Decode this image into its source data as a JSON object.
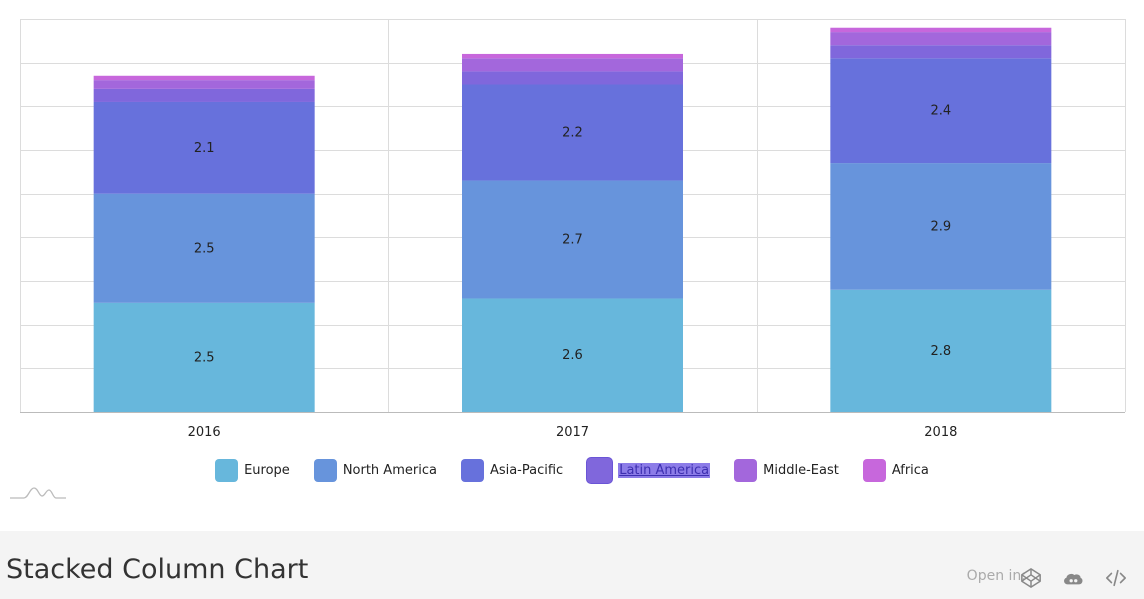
{
  "chart_data": {
    "type": "bar",
    "stacked": true,
    "categories": [
      "2016",
      "2017",
      "2018"
    ],
    "series": [
      {
        "name": "Europe",
        "values": [
          2.5,
          2.6,
          2.8
        ],
        "color": "#67b7dc",
        "labels": [
          "2.5",
          "2.6",
          "2.8"
        ]
      },
      {
        "name": "North America",
        "values": [
          2.5,
          2.7,
          2.9
        ],
        "color": "#6794dc",
        "labels": [
          "2.5",
          "2.7",
          "2.9"
        ]
      },
      {
        "name": "Asia-Pacific",
        "values": [
          2.1,
          2.2,
          2.4
        ],
        "color": "#6771dc",
        "labels": [
          "2.1",
          "2.2",
          "2.4"
        ]
      },
      {
        "name": "Latin America",
        "values": [
          0.3,
          0.3,
          0.3
        ],
        "color": "#8067dc",
        "labels": [
          "",
          "",
          ""
        ]
      },
      {
        "name": "Middle-East",
        "values": [
          0.2,
          0.3,
          0.3
        ],
        "color": "#a367dc",
        "labels": [
          "",
          "",
          ""
        ]
      },
      {
        "name": "Africa",
        "values": [
          0.1,
          0.1,
          0.1
        ],
        "color": "#c767dc",
        "labels": [
          "",
          "",
          ""
        ]
      }
    ],
    "ylim": [
      0,
      9
    ],
    "grid": true,
    "legend_position": "bottom",
    "active_legend_item": "Latin America"
  },
  "footer": {
    "title": "Stacked Column Chart",
    "open_in_label": "Open in:",
    "icons": [
      "codepen-icon",
      "cloud-icon",
      "code-icon"
    ]
  }
}
